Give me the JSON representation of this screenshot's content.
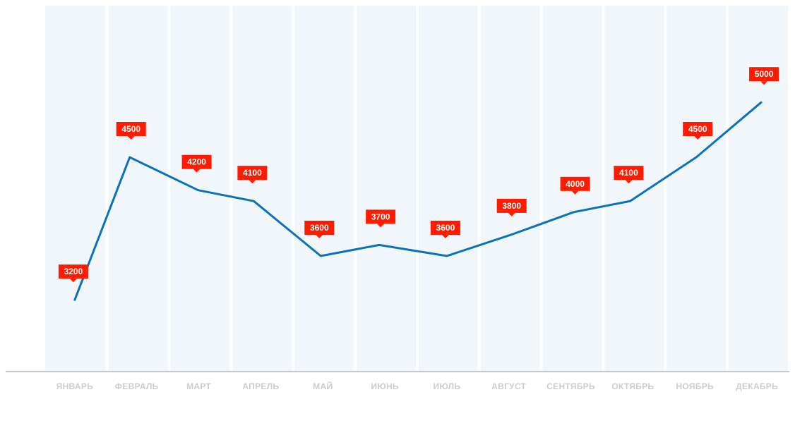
{
  "chart_data": {
    "type": "line",
    "categories": [
      "ЯНВАРЬ",
      "ФЕВРАЛЬ",
      "МАРТ",
      "АПРЕЛЬ",
      "МАЙ",
      "ИЮНЬ",
      "ИЮЛЬ",
      "АВГУСТ",
      "СЕНТЯБРЬ",
      "ОКТЯБРЬ",
      "НОЯБРЬ",
      "ДЕКАБРЬ"
    ],
    "series": [
      {
        "values": [
          3200,
          4500,
          4200,
          4100,
          3600,
          3700,
          3600,
          3800,
          4000,
          4100,
          4500,
          5000
        ]
      }
    ],
    "data_labels": [
      "3200",
      "4500",
      "4200",
      "4100",
      "3600",
      "3700",
      "3600",
      "3800",
      "4000",
      "4100",
      "4500",
      "5000"
    ],
    "title": "",
    "xlabel": "",
    "ylabel": "",
    "ylim": [
      2000,
      5500
    ],
    "grid": false,
    "legend": "none",
    "colors": {
      "line": "#0a72b8",
      "label_bg": "#ff1a00",
      "label_text": "#ffffff",
      "column_bg": "#f1f6fb",
      "axis": "#c4c7cc",
      "tick_text": "#c9ccd1"
    }
  }
}
